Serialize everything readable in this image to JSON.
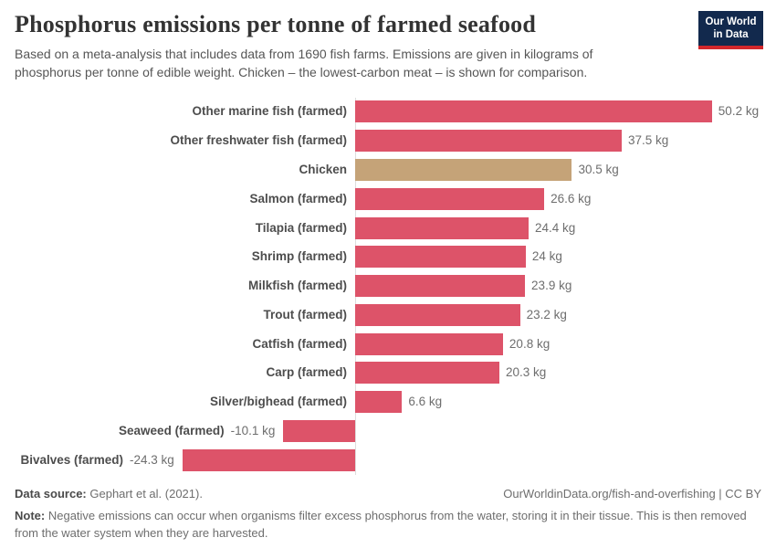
{
  "header": {
    "title": "Phosphorus emissions per tonne of farmed seafood",
    "subtitle": "Based on a meta-analysis that includes data from 1690 fish farms. Emissions are given in kilograms of phosphorus per tonne of edible weight. Chicken – the lowest-carbon meat – is shown for comparison.",
    "logo": {
      "line1": "Our World",
      "line2": "in Data",
      "bg_color": "#12294d",
      "accent_color": "#d2262b"
    }
  },
  "chart_data": {
    "type": "bar",
    "orientation": "horizontal",
    "title": "Phosphorus emissions per tonne of farmed seafood",
    "unit": "kg",
    "xlabel": "",
    "ylabel": "",
    "xlim": [
      -24.3,
      50.2
    ],
    "grid": false,
    "legend": false,
    "categories": [
      "Other marine fish (farmed)",
      "Other freshwater fish (farmed)",
      "Chicken",
      "Salmon (farmed)",
      "Tilapia (farmed)",
      "Shrimp (farmed)",
      "Milkfish (farmed)",
      "Trout (farmed)",
      "Catfish (farmed)",
      "Carp (farmed)",
      "Silver/bighead (farmed)",
      "Seaweed (farmed)",
      "Bivalves (farmed)"
    ],
    "values": [
      50.2,
      37.5,
      30.5,
      26.6,
      24.4,
      24,
      23.9,
      23.2,
      20.8,
      20.3,
      6.6,
      -10.1,
      -24.3
    ],
    "value_labels": [
      "50.2 kg",
      "37.5 kg",
      "30.5 kg",
      "26.6 kg",
      "24.4 kg",
      "24 kg",
      "23.9 kg",
      "23.2 kg",
      "20.8 kg",
      "20.3 kg",
      "6.6 kg",
      "-10.1 kg",
      "-24.3 kg"
    ],
    "bar_color": "#dd5369",
    "highlight_category": "Chicken",
    "highlight_color": "#c5a378",
    "axis_color": "#dddddd"
  },
  "footer": {
    "data_source_label": "Data source:",
    "data_source": "Gephart et al. (2021).",
    "url": "OurWorldinData.org/fish-and-overfishing | CC BY",
    "note_label": "Note:",
    "note": "Negative emissions can occur when organisms filter excess phosphorus from the water, storing it in their tissue. This is then removed from the water system when they are harvested."
  }
}
